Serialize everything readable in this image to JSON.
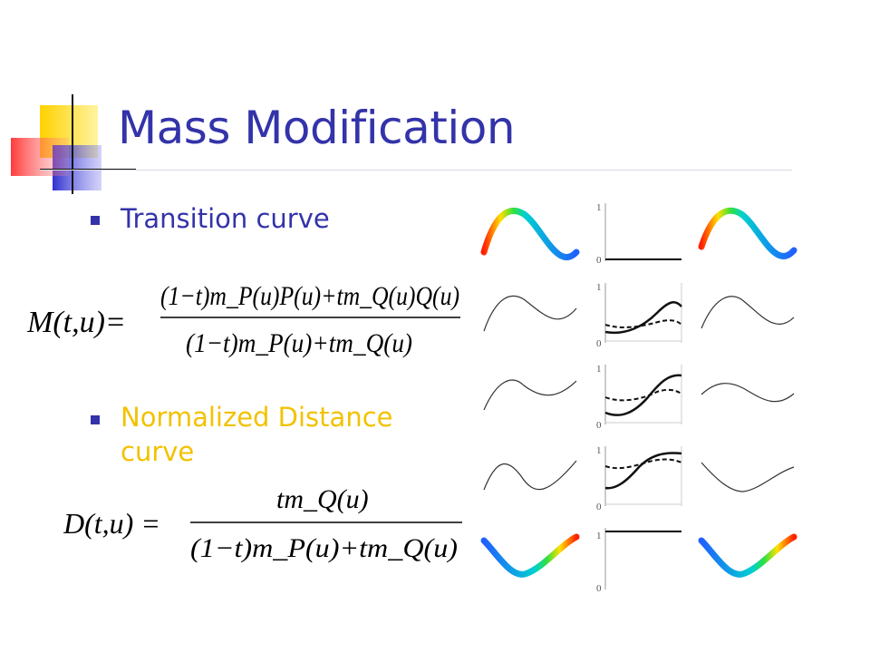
{
  "slide": {
    "title": "Mass Modification",
    "bullets": [
      {
        "text": "Transition curve",
        "color": "#3333aa"
      },
      {
        "text_line1": "Normalized Distance",
        "text_line2": "curve",
        "color": "#f2c200"
      }
    ]
  },
  "equations": {
    "M": {
      "lhs": "M(t,u)=",
      "numerator": "(1−t)m_P(u)P(u)+tm_Q(u)Q(u)",
      "denominator": "(1−t)m_P(u)+tm_Q(u)"
    },
    "D": {
      "lhs": "D(t,u) =",
      "numerator": "tm_Q(u)",
      "denominator": "(1−t)m_P(u)+tm_Q(u)"
    }
  },
  "figure": {
    "tick_labels": [
      "1",
      "0",
      "1",
      "0",
      "1",
      "0",
      "1",
      "0",
      "1",
      "0"
    ]
  },
  "colors": {
    "title": "#3333aa",
    "bullet": "#3333aa",
    "highlight": "#f2c200"
  }
}
